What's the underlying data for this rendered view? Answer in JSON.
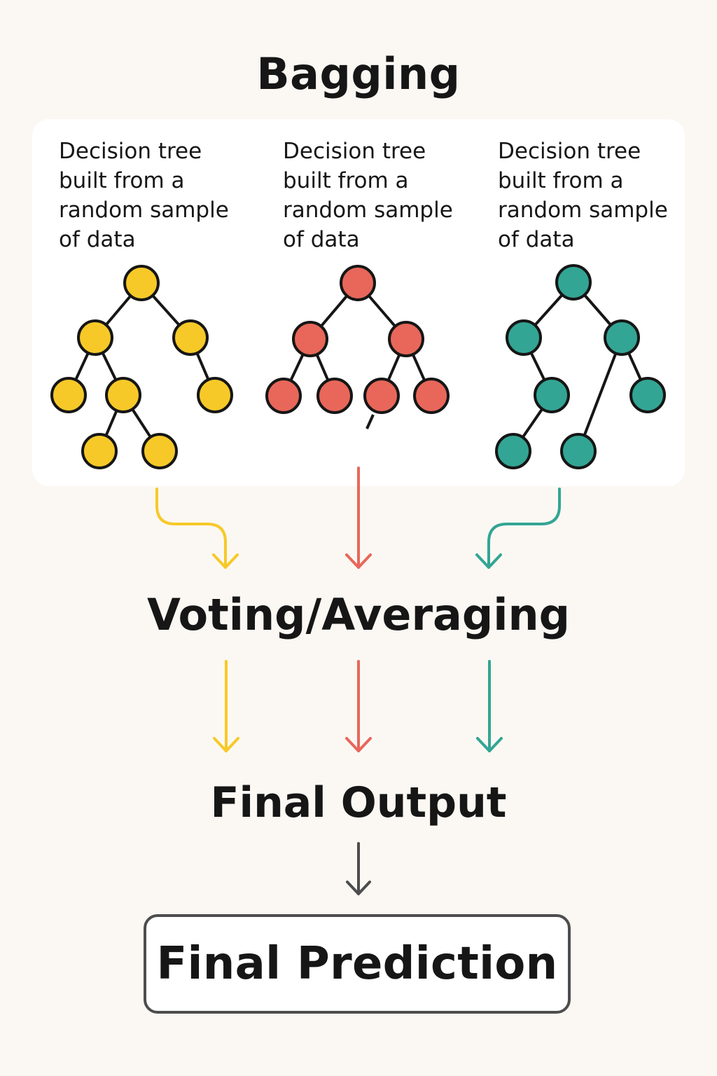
{
  "title": "Bagging",
  "trees": [
    {
      "caption": "Decision tree built from a random sample of data",
      "color": "#f7c928"
    },
    {
      "caption": "Decision tree built from a random sample of data",
      "color": "#e8675a"
    },
    {
      "caption": "Decision tree built from a random sample of data",
      "color": "#33a594"
    }
  ],
  "stages": {
    "aggregation": "Voting/Averaging",
    "output": "Final Output",
    "prediction": "Final Prediction"
  },
  "colors": {
    "background": "#fbf8f3",
    "panel": "#ffffff",
    "outline": "#161616",
    "final_arrow": "#4d4d4d"
  }
}
